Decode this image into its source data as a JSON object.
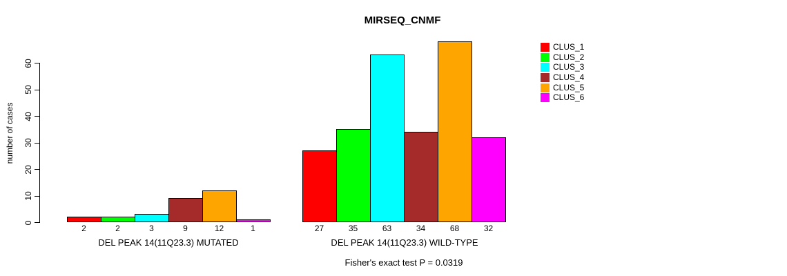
{
  "chart_data": {
    "type": "bar",
    "title": "MIRSEQ_CNMF",
    "subtitle": "Fisher's exact test P = 0.0319",
    "ylabel": "number of cases",
    "xlabel": "",
    "ylim": [
      0,
      60
    ],
    "yticks": [
      0,
      10,
      20,
      30,
      40,
      50,
      60
    ],
    "grid": false,
    "legend_position": "right",
    "series": [
      {
        "name": "CLUS_1",
        "color": "#FF0000"
      },
      {
        "name": "CLUS_2",
        "color": "#00FF00"
      },
      {
        "name": "CLUS_3",
        "color": "#00FFFF"
      },
      {
        "name": "CLUS_4",
        "color": "#A52A2A"
      },
      {
        "name": "CLUS_5",
        "color": "#FFA500"
      },
      {
        "name": "CLUS_6",
        "color": "#FF00FF"
      }
    ],
    "groups": [
      {
        "label": "DEL PEAK 14(11Q23.3) MUTATED",
        "values": [
          2,
          2,
          3,
          9,
          12,
          1
        ]
      },
      {
        "label": "DEL PEAK 14(11Q23.3) WILD-TYPE",
        "values": [
          27,
          35,
          63,
          34,
          68,
          32
        ]
      }
    ]
  }
}
